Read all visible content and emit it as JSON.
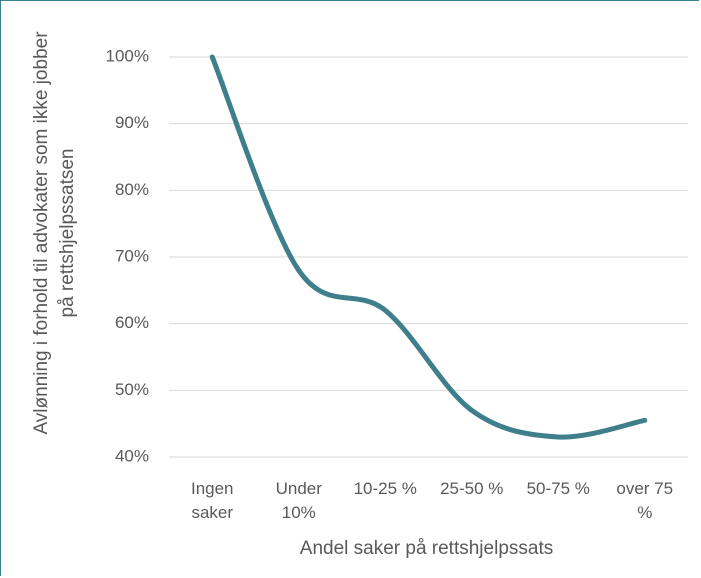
{
  "chart_data": {
    "type": "line",
    "x_label": "Andel saker på rettshjelpssats",
    "y_label": "Avlønning i forhold til advokater som ikke jobber på rettshjelpssatsen",
    "categories": [
      "Ingen saker",
      "Under 10%",
      "10-25 %",
      "25-50 %",
      "50-75 %",
      "over 75 %"
    ],
    "series": [
      {
        "name": "Avlønning",
        "color": "#3f7f8c",
        "values": [
          100,
          68,
          62,
          47,
          43,
          45.5
        ]
      }
    ],
    "ylim": [
      40,
      100
    ],
    "yticks": [
      {
        "value": 40,
        "label": "40%"
      },
      {
        "value": 50,
        "label": "50%"
      },
      {
        "value": 60,
        "label": "60%"
      },
      {
        "value": 70,
        "label": "70%"
      },
      {
        "value": 80,
        "label": "80%"
      },
      {
        "value": 90,
        "label": "90%"
      },
      {
        "value": 100,
        "label": "100%"
      }
    ],
    "grid": true,
    "smooth": true
  }
}
